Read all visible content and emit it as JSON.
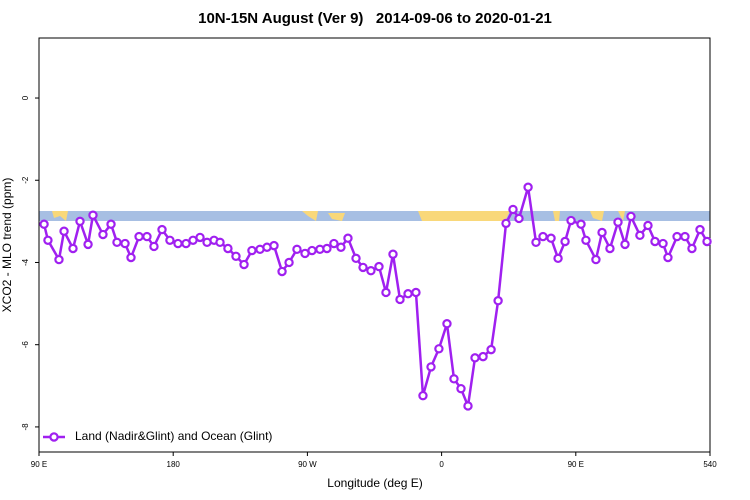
{
  "chart_data": {
    "type": "line",
    "title": "10N-15N August (Ver 9)   2014-09-06 to 2020-01-21",
    "x_label": "Longitude (deg E)",
    "y_label": "XCO2 - MLO trend (ppm)",
    "xlim": [
      90,
      540
    ],
    "ylim": [
      -8.61,
      1.46
    ],
    "xticks": [
      {
        "value": 90,
        "label": "90 E"
      },
      180,
      {
        "value": 270,
        "label": "90 W"
      },
      {
        "value": 360,
        "label": "0"
      },
      {
        "value": 450,
        "label": "90 E"
      },
      540
    ],
    "yticks": [
      0,
      -2,
      -4,
      -6,
      -8
    ],
    "legend": "bottom-left",
    "series": [
      {
        "name": "Land (Nadir&Glint) and Ocean (Glint)",
        "color": "#a020f0",
        "x": [
          93.4,
          96.0,
          103.4,
          106.8,
          112.8,
          117.5,
          122.9,
          126.2,
          132.9,
          138.3,
          142.3,
          147.7,
          151.7,
          157.1,
          162.4,
          167.1,
          172.5,
          177.8,
          183.2,
          188.6,
          193.3,
          198.0,
          202.7,
          207.4,
          211.4,
          216.7,
          222.1,
          227.5,
          232.8,
          238.2,
          242.9,
          247.6,
          253.0,
          257.7,
          263.0,
          268.4,
          273.1,
          278.4,
          283.1,
          287.8,
          292.5,
          297.2,
          302.6,
          307.3,
          312.6,
          318.0,
          322.7,
          327.4,
          332.1,
          337.5,
          342.8,
          347.5,
          352.9,
          358.2,
          363.6,
          368.3,
          373.0,
          377.7,
          382.4,
          387.8,
          393.2,
          397.9,
          403.2,
          407.9,
          411.9,
          418.0,
          423.3,
          428.0,
          433.4,
          438.1,
          442.8,
          446.8,
          453.5,
          456.8,
          463.5,
          467.6,
          472.9,
          478.3,
          483.0,
          487.0,
          493.0,
          498.4,
          503.1,
          508.5,
          511.8,
          517.9,
          523.2,
          527.9,
          533.3,
          538.0
        ],
        "values": [
          -3.07,
          -3.46,
          -3.93,
          -3.24,
          -3.66,
          -3.0,
          -3.56,
          -2.85,
          -3.32,
          -3.07,
          -3.51,
          -3.54,
          -3.88,
          -3.37,
          -3.37,
          -3.61,
          -3.2,
          -3.46,
          -3.54,
          -3.54,
          -3.46,
          -3.39,
          -3.51,
          -3.46,
          -3.51,
          -3.66,
          -3.85,
          -4.05,
          -3.71,
          -3.68,
          -3.63,
          -3.59,
          -4.22,
          -4.0,
          -3.68,
          -3.78,
          -3.71,
          -3.68,
          -3.66,
          -3.54,
          -3.63,
          -3.41,
          -3.9,
          -4.12,
          -4.2,
          -4.1,
          -4.73,
          -3.8,
          -4.9,
          -4.76,
          -4.73,
          -7.24,
          -6.54,
          -6.1,
          -5.49,
          -6.83,
          -7.07,
          -7.49,
          -6.32,
          -6.29,
          -6.12,
          -4.93,
          -3.05,
          -2.71,
          -2.93,
          -2.17,
          -3.51,
          -3.37,
          -3.41,
          -3.9,
          -3.49,
          -2.98,
          -3.07,
          -3.46,
          -3.93,
          -3.27,
          -3.66,
          -3.02,
          -3.56,
          -2.88,
          -3.34,
          -3.1,
          -3.49,
          -3.54,
          -3.88,
          -3.37,
          -3.37,
          -3.66,
          -3.2,
          -3.49
        ]
      }
    ]
  }
}
